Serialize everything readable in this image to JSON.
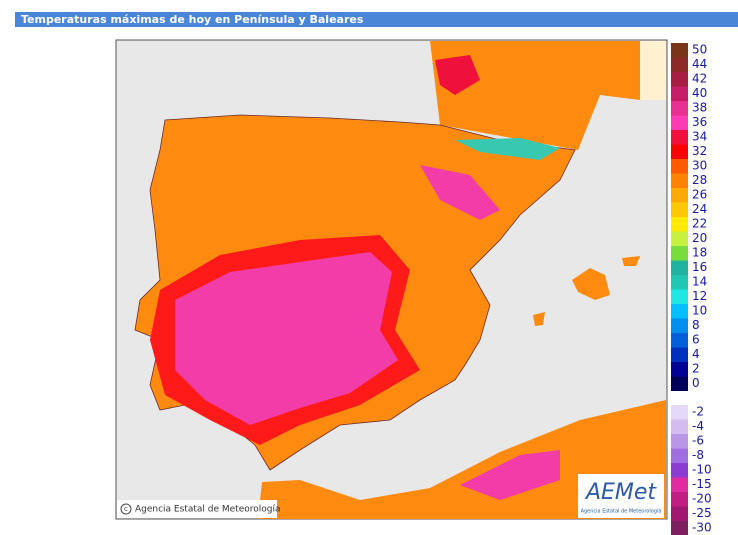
{
  "header": {
    "title": "Temperaturas máximas de hoy en Península y Baleares"
  },
  "legend": {
    "items": [
      {
        "value": 50,
        "color": "#7a3418"
      },
      {
        "value": 44,
        "color": "#8c2a2a"
      },
      {
        "value": 42,
        "color": "#a81e42"
      },
      {
        "value": 40,
        "color": "#c81e6a"
      },
      {
        "value": 38,
        "color": "#e83090"
      },
      {
        "value": 36,
        "color": "#ff3cb4"
      },
      {
        "value": 34,
        "color": "#f0103c"
      },
      {
        "value": 32,
        "color": "#ff0000"
      },
      {
        "value": 30,
        "color": "#ff5a00"
      },
      {
        "value": 28,
        "color": "#ff8200"
      },
      {
        "value": 26,
        "color": "#ffa800"
      },
      {
        "value": 24,
        "color": "#ffc800"
      },
      {
        "value": 22,
        "color": "#ffea00"
      },
      {
        "value": 20,
        "color": "#c8f040"
      },
      {
        "value": 18,
        "color": "#78dc3c"
      },
      {
        "value": 16,
        "color": "#20b4a0"
      },
      {
        "value": 14,
        "color": "#20c8b4"
      },
      {
        "value": 12,
        "color": "#20e6e6"
      },
      {
        "value": 10,
        "color": "#00c0ff"
      },
      {
        "value": 8,
        "color": "#0090f0"
      },
      {
        "value": 6,
        "color": "#0060dc"
      },
      {
        "value": 4,
        "color": "#0030c0"
      },
      {
        "value": 2,
        "color": "#000096"
      },
      {
        "value": 0,
        "color": "#00005a"
      },
      {
        "value": -2,
        "color": "#e6d8f8"
      },
      {
        "value": -4,
        "color": "#d2bcf0"
      },
      {
        "value": -6,
        "color": "#ba96e8"
      },
      {
        "value": -8,
        "color": "#a070e0"
      },
      {
        "value": -10,
        "color": "#8c3cd0"
      },
      {
        "value": -15,
        "color": "#e02ca0"
      },
      {
        "value": -20,
        "color": "#c01e82"
      },
      {
        "value": -25,
        "color": "#a01870"
      },
      {
        "value": -30,
        "color": "#7e2060"
      }
    ]
  },
  "map": {
    "credit": "Agencia Estatal de Meteorología",
    "logo": "AEMet",
    "logo_subtitle": "Agencia Estatal de Meteorología"
  }
}
